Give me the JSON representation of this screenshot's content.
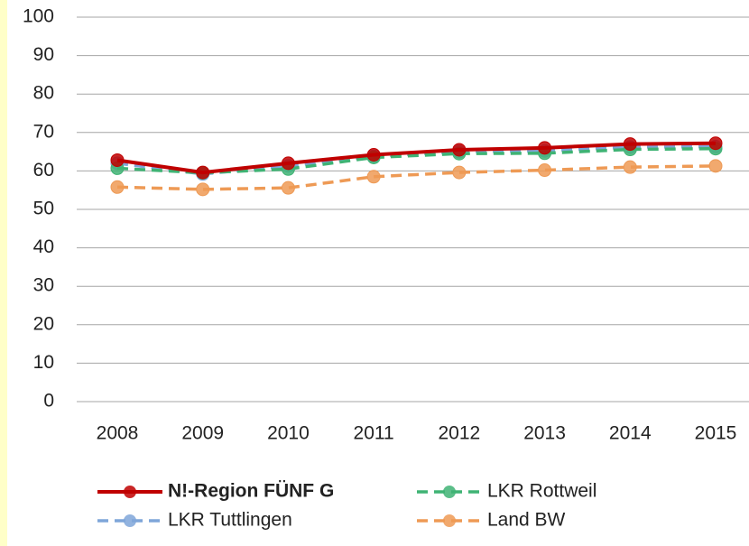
{
  "chart_data": {
    "type": "line",
    "categories": [
      "2008",
      "2009",
      "2010",
      "2011",
      "2012",
      "2013",
      "2014",
      "2015"
    ],
    "series": [
      {
        "name": "N!-Region FÜNF G",
        "color": "#c00000",
        "dashed": false,
        "values": [
          62.8,
          59.6,
          62.0,
          64.2,
          65.5,
          66.0,
          67.0,
          67.2
        ]
      },
      {
        "name": "LKR Rottweil",
        "color": "#3fb374",
        "dashed": true,
        "values": [
          60.7,
          59.5,
          60.5,
          63.5,
          64.5,
          64.6,
          65.6,
          65.8
        ]
      },
      {
        "name": "LKR Tuttlingen",
        "color": "#7fa6d9",
        "dashed": true,
        "values": [
          62.0,
          59.2,
          61.3,
          63.8,
          65.0,
          65.2,
          66.2,
          66.3
        ]
      },
      {
        "name": "Land BW",
        "color": "#ee9a55",
        "dashed": true,
        "values": [
          55.8,
          55.2,
          55.6,
          58.5,
          59.6,
          60.2,
          61.0,
          61.3
        ]
      }
    ],
    "ylim": [
      0,
      100
    ],
    "yticks": [
      0,
      10,
      20,
      30,
      40,
      50,
      60,
      70,
      80,
      90,
      100
    ],
    "grid": true
  }
}
